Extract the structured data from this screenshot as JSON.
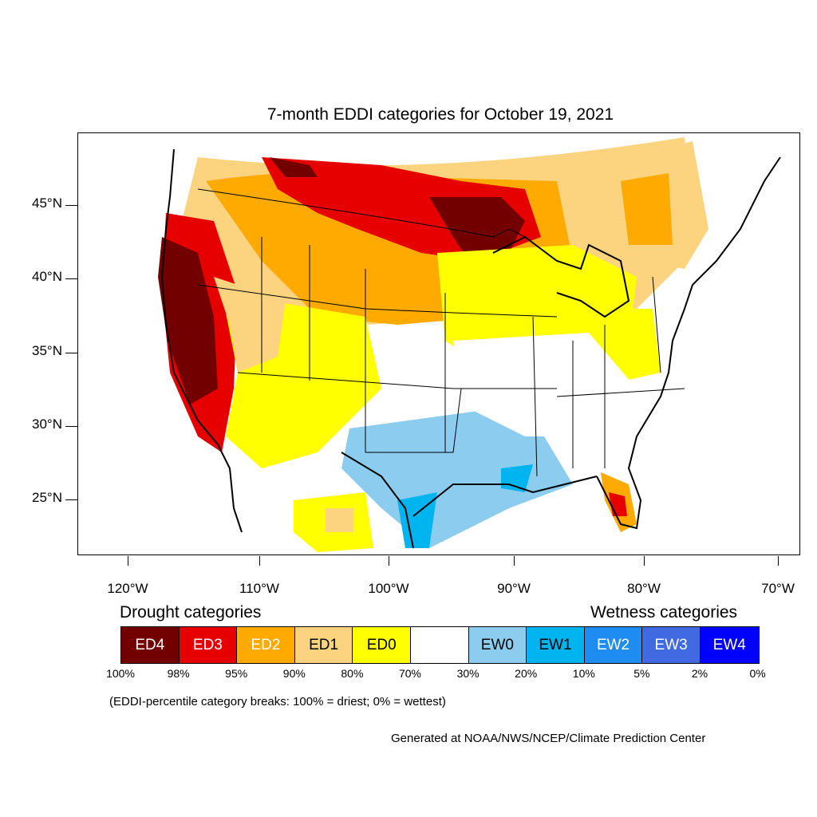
{
  "title": "7-month EDDI categories for October 19, 2021",
  "lat_labels": [
    "45°N",
    "40°N",
    "35°N",
    "30°N",
    "25°N"
  ],
  "lon_labels": [
    "120°W",
    "110°W",
    "100°W",
    "90°W",
    "80°W",
    "70°W"
  ],
  "legend": {
    "drought_heading": "Drought categories",
    "wetness_heading": "Wetness categories",
    "categories": [
      {
        "label": "ED4",
        "color": "#730000",
        "text_color": "#ffffff"
      },
      {
        "label": "ED3",
        "color": "#e60000",
        "text_color": "#ffffff"
      },
      {
        "label": "ED2",
        "color": "#ffaa00",
        "text_color": "#ffffff"
      },
      {
        "label": "ED1",
        "color": "#fcd37f",
        "text_color": "#000000"
      },
      {
        "label": "ED0",
        "color": "#ffff00",
        "text_color": "#000000"
      },
      {
        "label": "",
        "color": "#ffffff",
        "text_color": "#000000"
      },
      {
        "label": "EW0",
        "color": "#8ccdef",
        "text_color": "#000000"
      },
      {
        "label": "EW1",
        "color": "#00b4f0",
        "text_color": "#000000"
      },
      {
        "label": "EW2",
        "color": "#1e8cf0",
        "text_color": "#ffffff"
      },
      {
        "label": "EW3",
        "color": "#4169e1",
        "text_color": "#ffffff"
      },
      {
        "label": "EW4",
        "color": "#0000ff",
        "text_color": "#ffffff"
      }
    ],
    "percentiles": [
      "100%",
      "98%",
      "95%",
      "90%",
      "80%",
      "70%",
      "30%",
      "20%",
      "10%",
      "5%",
      "2%",
      "0%"
    ]
  },
  "note": "(EDDI-percentile category breaks: 100% = driest; 0% = wettest)",
  "credit": "Generated at NOAA/NWS/NCEP/Climate Prediction Center"
}
